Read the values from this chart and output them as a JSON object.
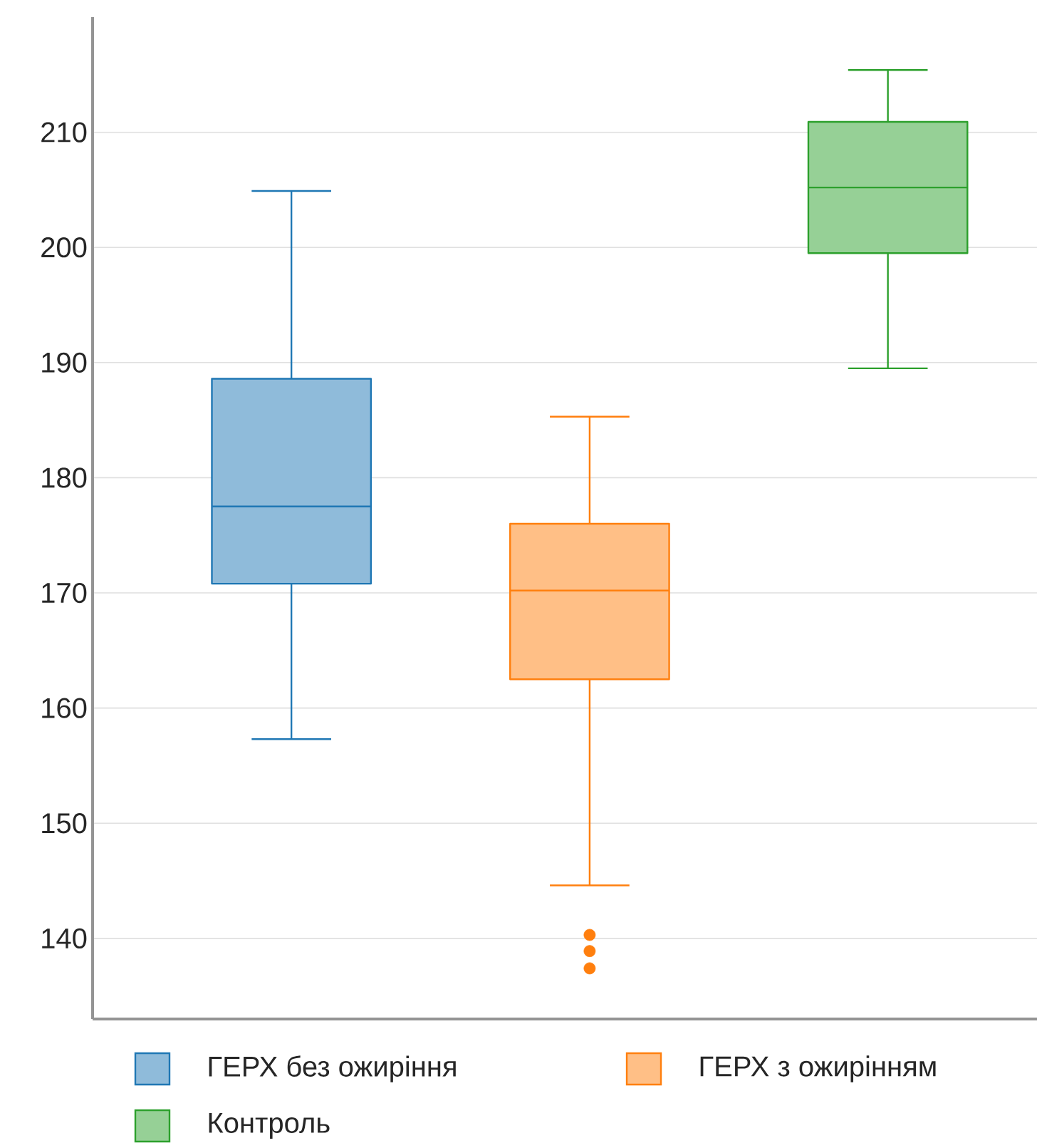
{
  "chart_data": {
    "type": "box",
    "categories": [
      null
    ],
    "series": [
      {
        "name": "ГЕРХ без ожиріння",
        "color": "#1f77b4",
        "boxes": [
          {
            "low": 157.3,
            "q1": 170.8,
            "median": 177.5,
            "q3": 188.6,
            "high": 204.9
          }
        ]
      },
      {
        "name": "ГЕРХ з ожирінням",
        "color": "#ff7f0e",
        "boxes": [
          {
            "low": 144.6,
            "q1": 162.5,
            "median": 170.2,
            "q3": 176.0,
            "high": 185.3,
            "outliers": [
              140.3,
              138.9,
              137.4
            ]
          }
        ]
      },
      {
        "name": "Контроль",
        "color": "#2ca02c",
        "boxes": [
          {
            "low": 189.5,
            "q1": 199.5,
            "median": 205.2,
            "q3": 210.9,
            "high": 215.4
          }
        ]
      }
    ],
    "ylim": [
      133,
      220
    ],
    "yticks": [
      140,
      150,
      160,
      170,
      180,
      190,
      200,
      210
    ],
    "grid": "y",
    "legend": "bottom",
    "tick_labels": "y"
  }
}
